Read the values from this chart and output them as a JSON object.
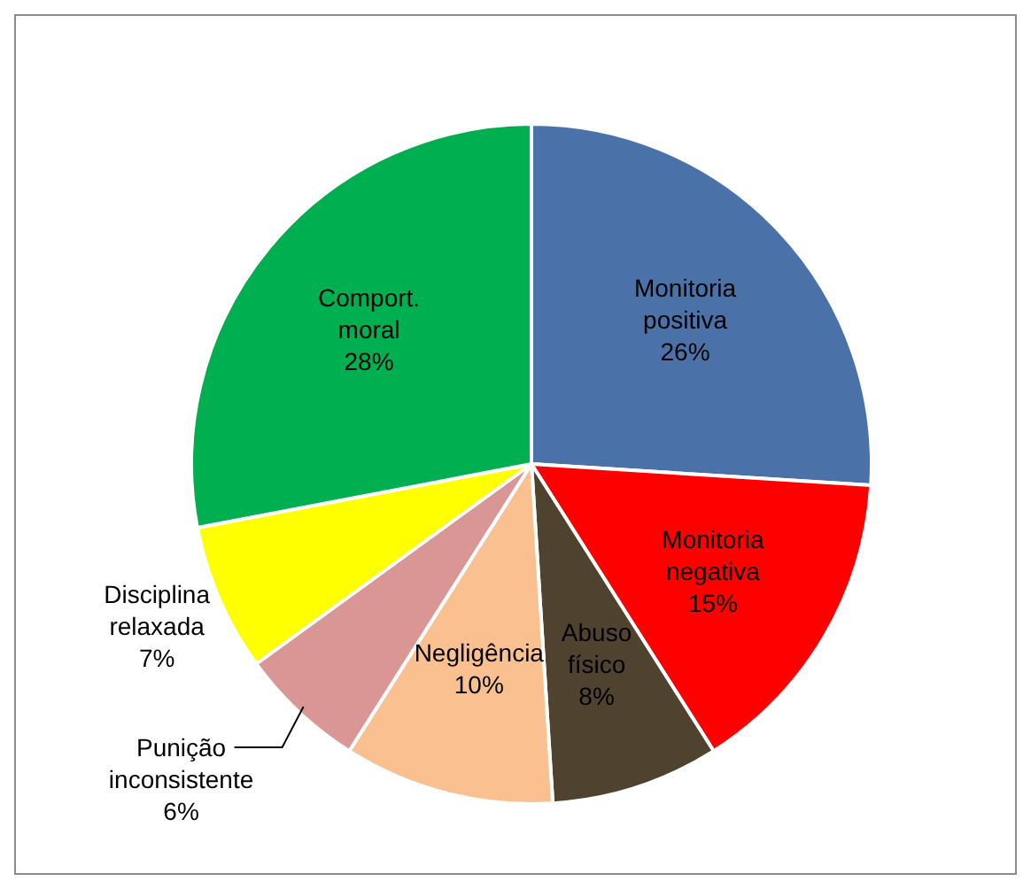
{
  "chart_data": {
    "type": "pie",
    "categories": [
      "Monitoria positiva",
      "Monitoria negativa",
      "Abuso físico",
      "Negligência",
      "Punição inconsistente",
      "Disciplina relaxada",
      "Comport. moral"
    ],
    "values": [
      26,
      15,
      8,
      10,
      6,
      7,
      28
    ],
    "colors": [
      "#4a72a8",
      "#ff0000",
      "#4f4330",
      "#fac090",
      "#d99694",
      "#ffff00",
      "#00b050"
    ],
    "value_labels": [
      "26%",
      "15%",
      "8%",
      "10%",
      "6%",
      "7%",
      "28%"
    ]
  }
}
